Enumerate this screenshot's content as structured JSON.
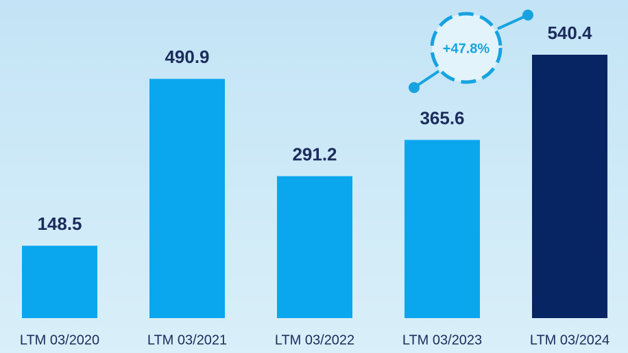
{
  "chart_data": {
    "type": "bar",
    "categories": [
      "LTM 03/2020",
      "LTM 03/2021",
      "LTM 03/2022",
      "LTM 03/2023",
      "LTM 03/2024"
    ],
    "values": [
      148.5,
      490.9,
      291.2,
      365.6,
      540.4
    ],
    "colors": [
      "#0aa7ee",
      "#0aa7ee",
      "#0aa7ee",
      "#0aa7ee",
      "#072463"
    ],
    "annotation": "+47.8%"
  }
}
